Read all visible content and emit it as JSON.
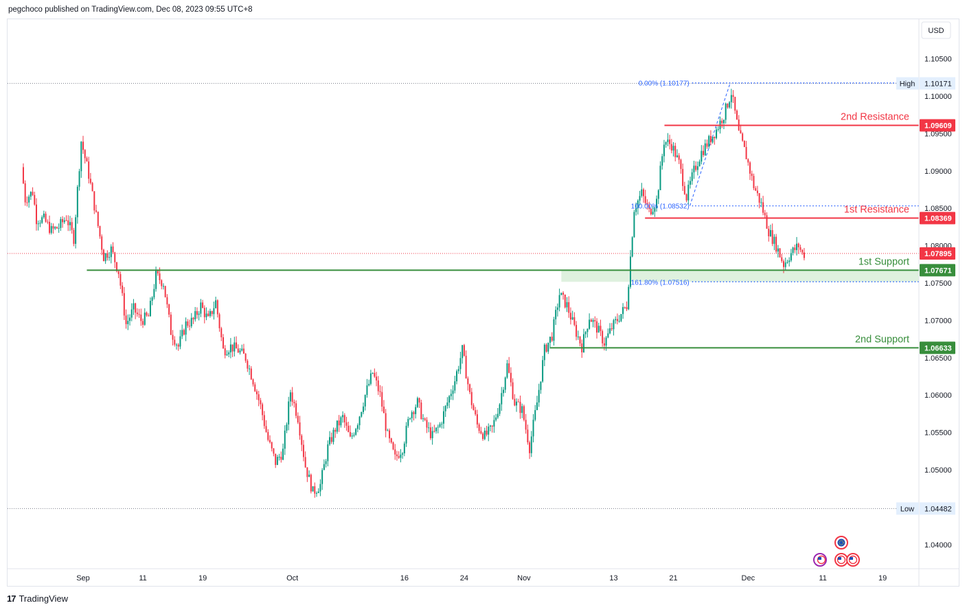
{
  "header": {
    "published": "pegchoco published on TradingView.com, Dec 08, 2023 09:55 UTC+8"
  },
  "footer": {
    "brand": "TradingView",
    "logo": "17"
  },
  "currency": "USD",
  "chart_data": {
    "type": "candlestick",
    "instrument": "",
    "price_ticks": [
      "1.10500",
      "1.10000",
      "1.09500",
      "1.09000",
      "1.08500",
      "1.08000",
      "1.07500",
      "1.07000",
      "1.06500",
      "1.06000",
      "1.05500",
      "1.05000",
      "1.04000"
    ],
    "ylim": [
      1.0365,
      1.1105
    ],
    "x_ticks": [
      {
        "label": "Sep",
        "day": 3
      },
      {
        "label": "11",
        "day": 11
      },
      {
        "label": "19",
        "day": 19
      },
      {
        "label": "Oct",
        "day": 31
      },
      {
        "label": "16",
        "day": 46
      },
      {
        "label": "24",
        "day": 54
      },
      {
        "label": "Nov",
        "day": 62
      },
      {
        "label": "13",
        "day": 74
      },
      {
        "label": "21",
        "day": 82
      },
      {
        "label": "Dec",
        "day": 92
      },
      {
        "label": "11",
        "day": 102
      },
      {
        "label": "19",
        "day": 110
      }
    ],
    "levels": [
      {
        "name": "2nd Resistance",
        "price": 1.09609,
        "label": "1.09609",
        "color": "#f23645",
        "from_day": 80.8
      },
      {
        "name": "1st Resistance",
        "price": 1.08369,
        "label": "1.08369",
        "color": "#f23645",
        "from_day": 78.2
      },
      {
        "name": "1st Support",
        "price": 1.07671,
        "label": "1.07671",
        "color": "#388e3c",
        "from_day": 3.5
      },
      {
        "name": "2nd Support",
        "price": 1.06633,
        "label": "1.06633",
        "color": "#388e3c",
        "from_day": 65.5
      }
    ],
    "support_zone": {
      "from_price": 1.07516,
      "to_price": 1.07671,
      "from_day": 67.0
    },
    "fibonacci": [
      {
        "label": "0.00% (1.10177)",
        "price": 1.10177,
        "from_day": 84.5
      },
      {
        "label": "100.00% (1.08532)",
        "price": 1.08532,
        "from_day": 84.5
      },
      {
        "label": "161.80% (1.07516)",
        "price": 1.07516,
        "from_day": 84.5
      }
    ],
    "fib_trend": {
      "from": {
        "day": 84.2,
        "price": 1.08532
      },
      "to": {
        "day": 89.6,
        "price": 1.10177
      }
    },
    "current_price": {
      "label": "1.07895",
      "price": 1.07895,
      "color": "#f23645"
    },
    "high": {
      "text": "High",
      "label": "1.10171",
      "price": 1.10171
    },
    "low": {
      "text": "Low",
      "label": "1.04482",
      "price": 1.04482
    },
    "path_keypoints": [
      [
        -5,
        1.0905
      ],
      [
        -4.5,
        1.0862
      ],
      [
        -3.5,
        1.0872
      ],
      [
        -3,
        1.0836
      ],
      [
        -2,
        1.0835
      ],
      [
        -1,
        1.082
      ],
      [
        0,
        1.0825
      ],
      [
        1,
        1.0838
      ],
      [
        2,
        1.081
      ],
      [
        3,
        1.094
      ],
      [
        4,
        1.0895
      ],
      [
        5,
        1.084
      ],
      [
        6,
        1.0785
      ],
      [
        7,
        1.0795
      ],
      [
        8,
        1.0765
      ],
      [
        9,
        1.0695
      ],
      [
        10,
        1.0715
      ],
      [
        11,
        1.07
      ],
      [
        12,
        1.0705
      ],
      [
        13,
        1.076
      ],
      [
        14,
        1.075
      ],
      [
        15,
        1.0685
      ],
      [
        16,
        1.0665
      ],
      [
        17,
        1.0695
      ],
      [
        18,
        1.07
      ],
      [
        19,
        1.072
      ],
      [
        20,
        1.07
      ],
      [
        21,
        1.0725
      ],
      [
        22,
        1.066
      ],
      [
        23,
        1.0665
      ],
      [
        24,
        1.066
      ],
      [
        25,
        1.065
      ],
      [
        26,
        1.062
      ],
      [
        27,
        1.0585
      ],
      [
        28,
        1.054
      ],
      [
        29,
        1.051
      ],
      [
        30,
        1.0525
      ],
      [
        31,
        1.0605
      ],
      [
        32,
        1.057
      ],
      [
        33,
        1.0505
      ],
      [
        34,
        1.047
      ],
      [
        35,
        1.048
      ],
      [
        36,
        1.053
      ],
      [
        37,
        1.0555
      ],
      [
        38,
        1.057
      ],
      [
        39,
        1.054
      ],
      [
        40,
        1.0565
      ],
      [
        41,
        1.06
      ],
      [
        42,
        1.063
      ],
      [
        43,
        1.06
      ],
      [
        44,
        1.0545
      ],
      [
        45,
        1.0515
      ],
      [
        46,
        1.053
      ],
      [
        47,
        1.0575
      ],
      [
        48,
        1.059
      ],
      [
        49,
        1.056
      ],
      [
        50,
        1.0545
      ],
      [
        51,
        1.056
      ],
      [
        52,
        1.059
      ],
      [
        53,
        1.062
      ],
      [
        54,
        1.066
      ],
      [
        55,
        1.06
      ],
      [
        56,
        1.056
      ],
      [
        57,
        1.0545
      ],
      [
        58,
        1.0555
      ],
      [
        59,
        1.059
      ],
      [
        60,
        1.064
      ],
      [
        61,
        1.059
      ],
      [
        62,
        1.058
      ],
      [
        63,
        1.053
      ],
      [
        64,
        1.059
      ],
      [
        65,
        1.066
      ],
      [
        66,
        1.068
      ],
      [
        67,
        1.0735
      ],
      [
        68,
        1.072
      ],
      [
        69,
        1.069
      ],
      [
        70,
        1.0665
      ],
      [
        71,
        1.0705
      ],
      [
        72,
        1.069
      ],
      [
        73,
        1.067
      ],
      [
        74,
        1.069
      ],
      [
        75,
        1.0705
      ],
      [
        76,
        1.072
      ],
      [
        77,
        1.085
      ],
      [
        78,
        1.087
      ],
      [
        79,
        1.0845
      ],
      [
        80,
        1.086
      ],
      [
        81,
        1.094
      ],
      [
        82,
        1.0935
      ],
      [
        83,
        1.091
      ],
      [
        84,
        1.0865
      ],
      [
        85,
        1.09
      ],
      [
        86,
        1.0925
      ],
      [
        87,
        1.094
      ],
      [
        88,
        1.0955
      ],
      [
        89,
        1.0975
      ],
      [
        90,
        1.1005
      ],
      [
        91,
        1.095
      ],
      [
        92,
        1.092
      ],
      [
        93,
        1.088
      ],
      [
        94,
        1.0855
      ],
      [
        95,
        1.082
      ],
      [
        96,
        1.08
      ],
      [
        97,
        1.0775
      ],
      [
        98,
        1.079
      ],
      [
        99,
        1.08
      ],
      [
        99.5,
        1.0789
      ]
    ]
  }
}
